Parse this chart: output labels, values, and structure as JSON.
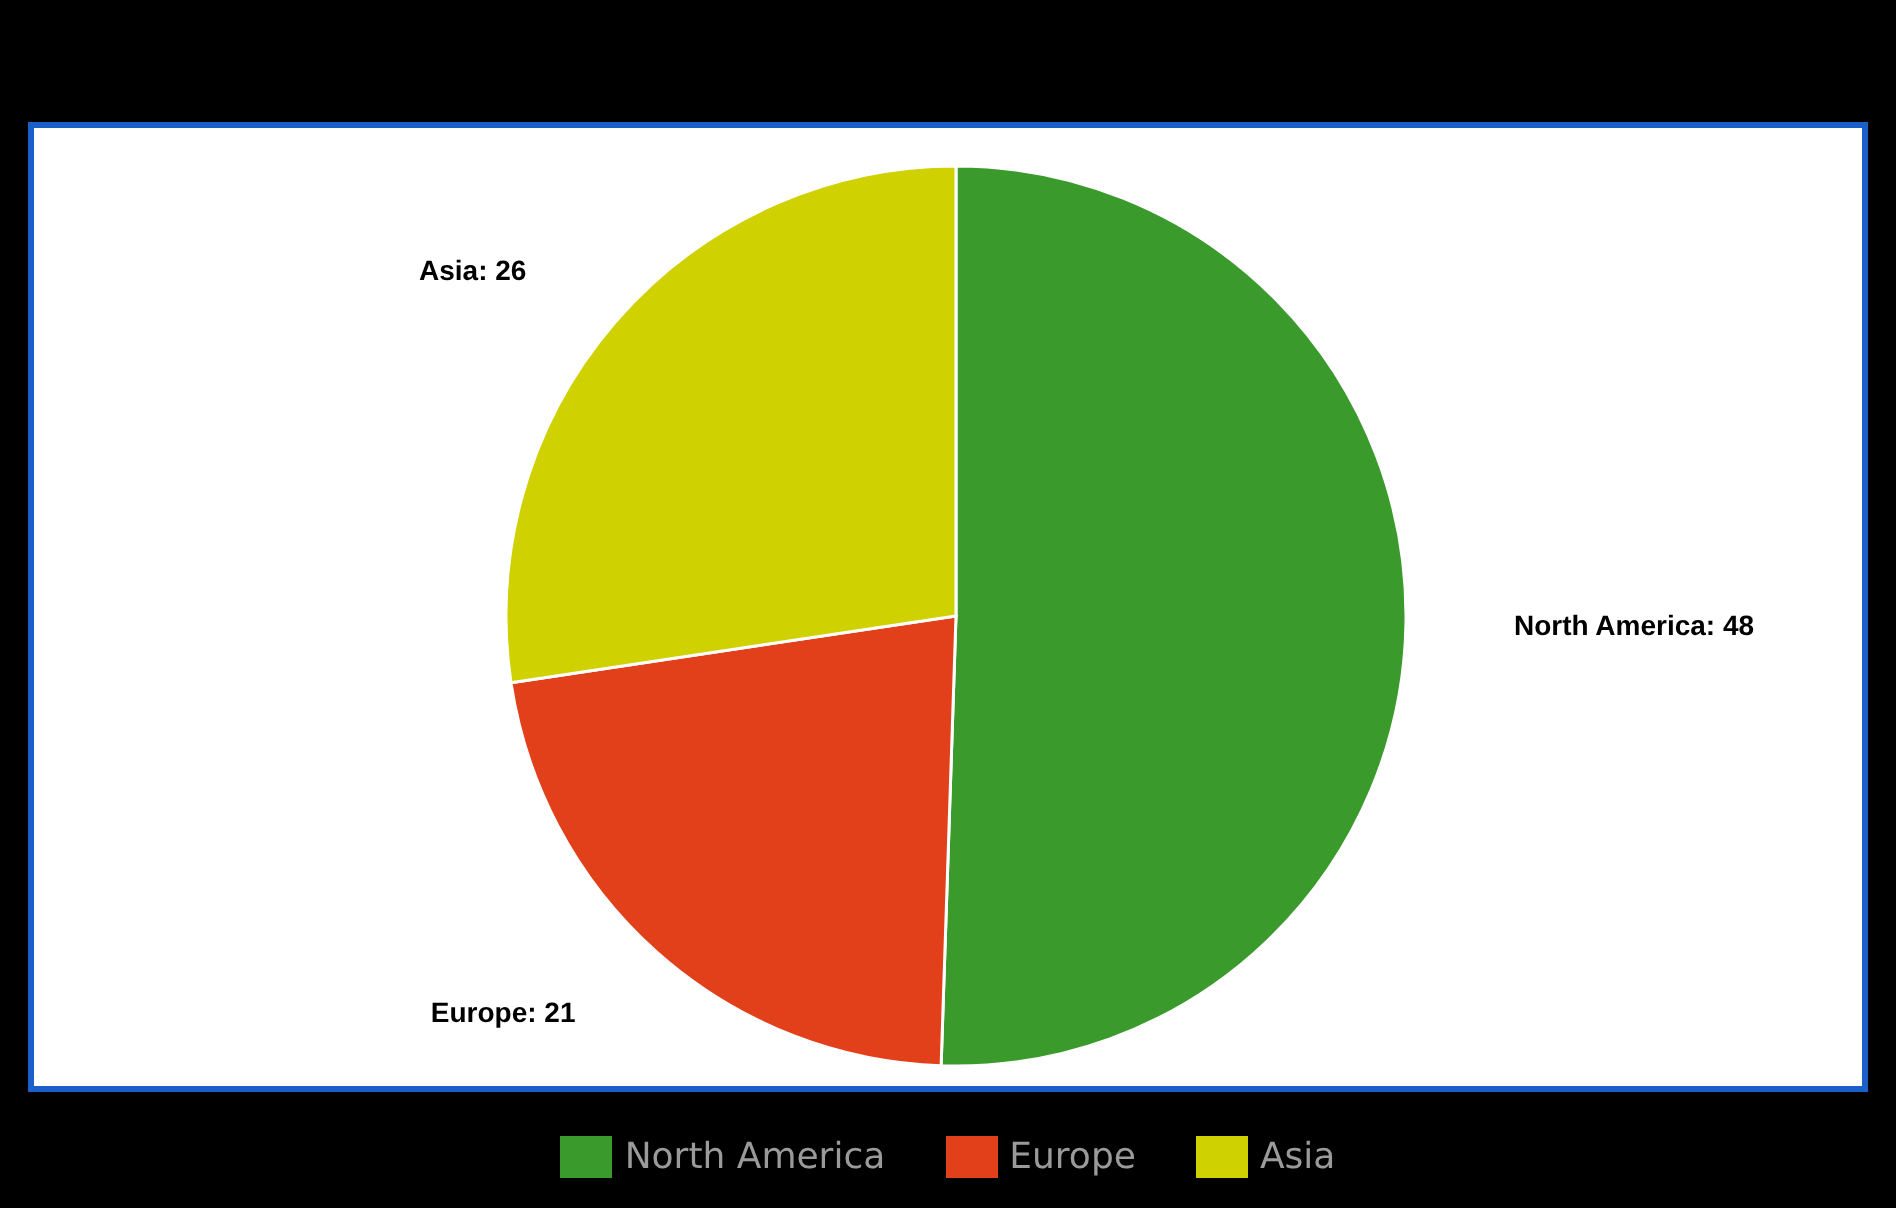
{
  "chart_data": {
    "type": "pie",
    "categories": [
      "North America",
      "Europe",
      "Asia"
    ],
    "values": [
      48,
      21,
      26
    ],
    "colors": [
      "#3a9a2c",
      "#e23f1b",
      "#cfd200"
    ],
    "value_labels": [
      "North America: 48",
      "Europe: 21",
      "Asia: 26"
    ],
    "legend": "bottom"
  }
}
